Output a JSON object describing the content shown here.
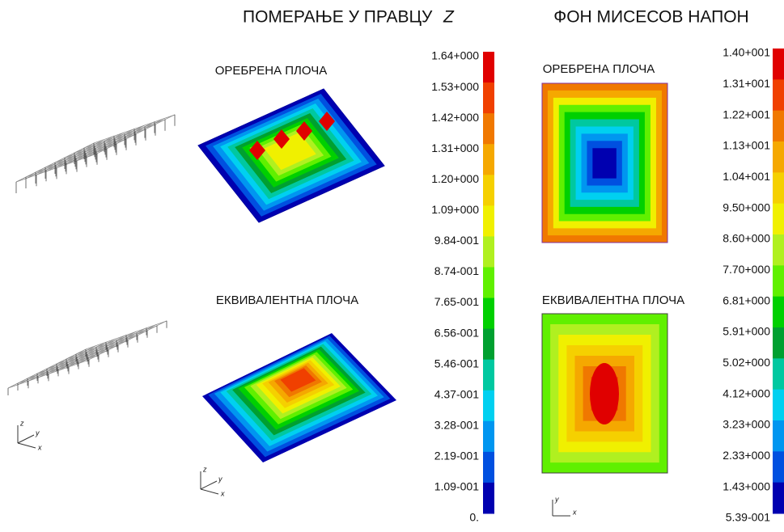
{
  "left": {
    "title": "ПОМЕРАЊЕ У ПРАВЦУ",
    "title_var": "Z",
    "panels": [
      "ОРЕБРЕНА ПЛОЧА",
      "ЕКВИВАЛЕНТНА ПЛОЧА"
    ],
    "legend": [
      "1.64+000",
      "1.53+000",
      "1.42+000",
      "1.31+000",
      "1.20+000",
      "1.09+000",
      "9.84-001",
      "8.74-001",
      "7.65-001",
      "6.56-001",
      "5.46-001",
      "4.37-001",
      "3.28-001",
      "2.19-001",
      "1.09-001",
      "0."
    ],
    "triads": [
      [
        "z",
        "y",
        "x"
      ],
      [
        "z",
        "y",
        "x"
      ]
    ]
  },
  "right": {
    "title": "ФОН МИСЕСОВ НАПОН",
    "panels": [
      "ОРЕБРЕНА ПЛОЧА",
      "ЕКВИВАЛЕНТНА ПЛОЧА"
    ],
    "legend": [
      "1.40+001",
      "1.31+001",
      "1.22+001",
      "1.13+001",
      "1.04+001",
      "9.50+000",
      "8.60+000",
      "7.70+000",
      "6.81+000",
      "5.91+000",
      "5.02+000",
      "4.12+000",
      "3.23+000",
      "2.33+000",
      "1.43+000",
      "5.39-001"
    ],
    "triads": [
      [
        "y",
        "x"
      ]
    ]
  },
  "colors": [
    "#e00000",
    "#f04000",
    "#f07800",
    "#f5a800",
    "#f5d000",
    "#f0f000",
    "#b0f020",
    "#60f000",
    "#00d000",
    "#00a030",
    "#00c8a0",
    "#00d0f0",
    "#0096f0",
    "#0050e0",
    "#0000b0"
  ]
}
